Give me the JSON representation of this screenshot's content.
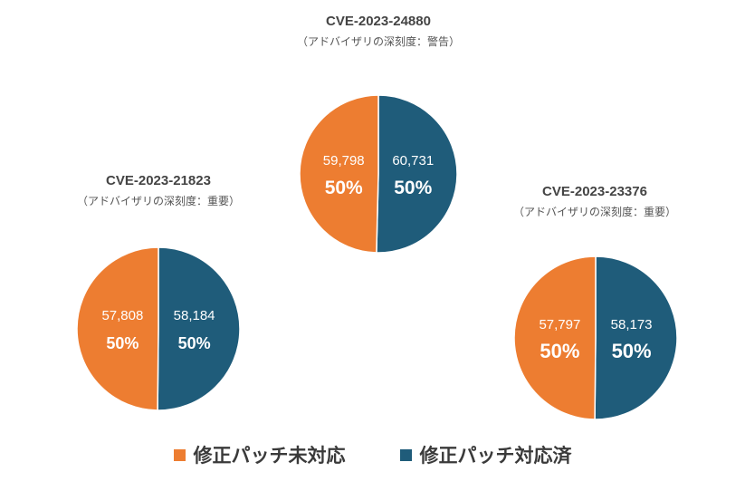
{
  "colors": {
    "unpatched": "#ED7D31",
    "patched": "#1F5C7A"
  },
  "legend": [
    {
      "label": "修正パッチ未対応",
      "color": "#ED7D31"
    },
    {
      "label": "修正パッチ対応済",
      "color": "#1F5C7A"
    }
  ],
  "chart_data": [
    {
      "type": "pie",
      "title": "CVE-2023-24880",
      "subtitle": "（アドバイザリの深刻度：警告）",
      "slices": [
        {
          "name": "修正パッチ未対応",
          "value": 59798,
          "value_label": "59,798",
          "percent_label": "50%"
        },
        {
          "name": "修正パッチ対応済",
          "value": 60731,
          "value_label": "60,731",
          "percent_label": "50%"
        }
      ]
    },
    {
      "type": "pie",
      "title": "CVE-2023-21823",
      "subtitle": "（アドバイザリの深刻度：重要）",
      "slices": [
        {
          "name": "修正パッチ未対応",
          "value": 57808,
          "value_label": "57,808",
          "percent_label": "50%"
        },
        {
          "name": "修正パッチ対応済",
          "value": 58184,
          "value_label": "58,184",
          "percent_label": "50%"
        }
      ]
    },
    {
      "type": "pie",
      "title": "CVE-2023-23376",
      "subtitle": "（アドバイザリの深刻度：重要）",
      "slices": [
        {
          "name": "修正パッチ未対応",
          "value": 57797,
          "value_label": "57,797",
          "percent_label": "50%"
        },
        {
          "name": "修正パッチ対応済",
          "value": 58173,
          "value_label": "58,173",
          "percent_label": "50%"
        }
      ]
    }
  ]
}
